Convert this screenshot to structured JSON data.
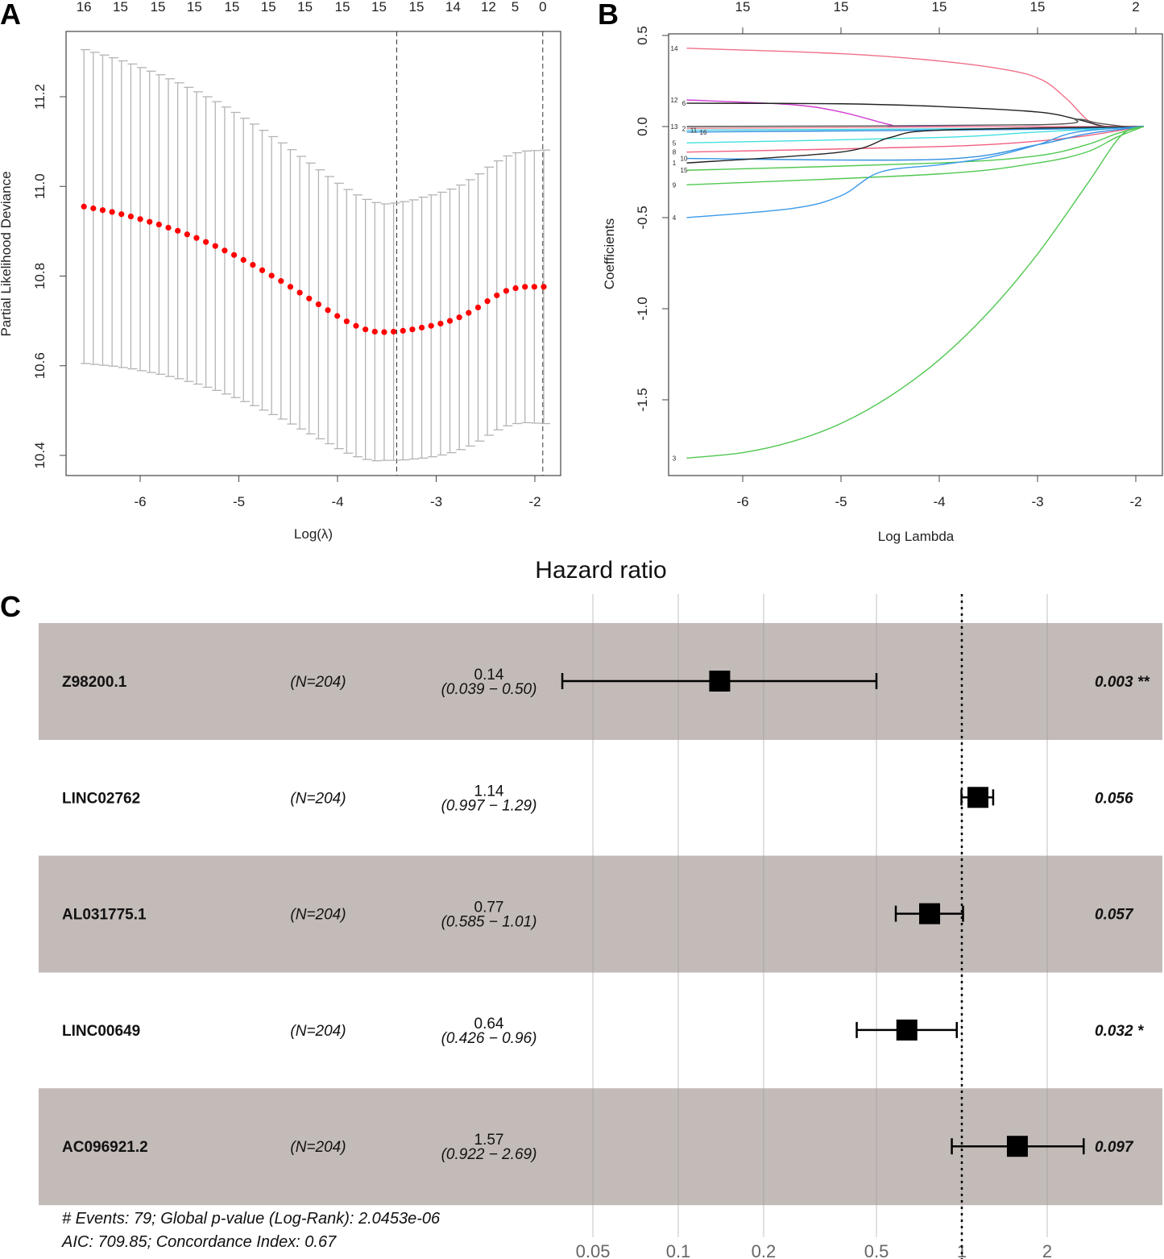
{
  "chart_data": [
    {
      "panel": "A",
      "type": "scatter",
      "xlabel": "Log(λ)",
      "ylabel": "Partial Likelihood Deviance",
      "xticks": [
        -6,
        -5,
        -4,
        -3,
        -2
      ],
      "yticks": [
        10.4,
        10.6,
        10.8,
        11.0,
        11.2
      ],
      "ytick_labels": [
        "10.4",
        "10.6",
        "10.8",
        "11.0",
        "11.2"
      ],
      "xlim": [
        -6.75,
        -1.75
      ],
      "ylim": [
        10.36,
        11.34
      ],
      "top_axis": {
        "log_lambda": [
          -6.57,
          -6.2,
          -5.82,
          -5.45,
          -5.07,
          -4.7,
          -4.33,
          -3.95,
          -3.58,
          -3.2,
          -2.83,
          -2.47,
          -2.2,
          -1.92
        ],
        "labels": [
          "16",
          "15",
          "15",
          "15",
          "15",
          "15",
          "15",
          "15",
          "15",
          "15",
          "14",
          "12",
          "5",
          "0"
        ]
      },
      "vlines": [
        -3.4,
        -1.92
      ],
      "log_lambda_start": -6.57,
      "log_lambda_step": 0.0951,
      "mean": [
        10.955,
        10.951,
        10.947,
        10.943,
        10.938,
        10.933,
        10.927,
        10.921,
        10.915,
        10.908,
        10.901,
        10.893,
        10.885,
        10.876,
        10.867,
        10.857,
        10.847,
        10.836,
        10.825,
        10.813,
        10.801,
        10.789,
        10.776,
        10.763,
        10.75,
        10.737,
        10.724,
        10.711,
        10.699,
        10.689,
        10.681,
        10.676,
        10.675,
        10.676,
        10.678,
        10.681,
        10.685,
        10.689,
        10.694,
        10.7,
        10.708,
        10.718,
        10.73,
        10.744,
        10.757,
        10.767,
        10.773,
        10.776,
        10.776,
        10.776
      ],
      "se": [
        0.35,
        0.348,
        0.346,
        0.344,
        0.342,
        0.34,
        0.338,
        0.336,
        0.334,
        0.332,
        0.33,
        0.328,
        0.326,
        0.324,
        0.322,
        0.32,
        0.318,
        0.316,
        0.314,
        0.312,
        0.31,
        0.308,
        0.306,
        0.304,
        0.302,
        0.3,
        0.298,
        0.296,
        0.294,
        0.292,
        0.29,
        0.288,
        0.286,
        0.287,
        0.288,
        0.289,
        0.291,
        0.292,
        0.293,
        0.294,
        0.295,
        0.297,
        0.298,
        0.299,
        0.3,
        0.301,
        0.302,
        0.303,
        0.304,
        0.305
      ],
      "point_color": "#ff0000",
      "bar_color": "#b4b4b4"
    },
    {
      "panel": "B",
      "type": "line",
      "xlabel": "Log Lambda",
      "ylabel": "Coefficients",
      "xticks": [
        -6,
        -5,
        -4,
        -3,
        -2
      ],
      "yticks": [
        0.5,
        0.0,
        -0.5,
        -1.0,
        -1.5
      ],
      "ytick_labels": [
        "0.5",
        "0.0",
        "-0.5",
        "-1.0",
        "-1.5"
      ],
      "top_axis": {
        "log_lambda": [
          -6,
          -5,
          -4,
          -3,
          -2
        ],
        "labels": [
          "15",
          "15",
          "15",
          "15",
          "2"
        ]
      },
      "series": [
        {
          "name": "14",
          "color": "#f07088",
          "points": [
            [
              -6.57,
              0.43
            ],
            [
              -5,
              0.4
            ],
            [
              -4,
              0.36
            ],
            [
              -3.3,
              0.31
            ],
            [
              -2.95,
              0.255
            ],
            [
              -2.7,
              0.15
            ],
            [
              -2.45,
              0.02
            ],
            [
              -2.2,
              0
            ],
            [
              -1.92,
              0
            ]
          ]
        },
        {
          "name": "12",
          "color": "#d23fd2",
          "points": [
            [
              -6.57,
              0.146
            ],
            [
              -5.5,
              0.12
            ],
            [
              -5,
              0.08
            ],
            [
              -4.5,
              0.01
            ],
            [
              -4.3,
              0
            ],
            [
              -1.92,
              0
            ]
          ]
        },
        {
          "name": "6",
          "color": "#222222",
          "points": [
            [
              -6.57,
              0.128
            ],
            [
              -5,
              0.125
            ],
            [
              -4,
              0.11
            ],
            [
              -3,
              0.08
            ],
            [
              -2.6,
              0.04
            ],
            [
              -2.3,
              0
            ],
            [
              -1.92,
              0
            ]
          ]
        },
        {
          "name": "13",
          "color": "#555555",
          "points": [
            [
              -6.57,
              0
            ],
            [
              -3,
              0.01
            ],
            [
              -2.6,
              0.04
            ],
            [
              -2.4,
              0.02
            ],
            [
              -2.1,
              0
            ],
            [
              -1.92,
              0
            ]
          ]
        },
        {
          "name": "2",
          "color": "#f08898",
          "points": [
            [
              -6.57,
              -0.01
            ],
            [
              -3,
              0
            ],
            [
              -1.92,
              0
            ]
          ]
        },
        {
          "name": "11",
          "color": "#40d0e0",
          "points": [
            [
              -6.57,
              -0.02
            ],
            [
              -3,
              -0.01
            ],
            [
              -1.92,
              0
            ]
          ]
        },
        {
          "name": "16",
          "color": "#3090e0",
          "points": [
            [
              -6.57,
              -0.03
            ],
            [
              -3,
              -0.015
            ],
            [
              -1.92,
              0
            ]
          ]
        },
        {
          "name": "5",
          "color": "#40e0e0",
          "points": [
            [
              -6.57,
              -0.09
            ],
            [
              -4,
              -0.06
            ],
            [
              -3,
              -0.03
            ],
            [
              -1.92,
              0
            ]
          ]
        },
        {
          "name": "8",
          "color": "#f06080",
          "points": [
            [
              -6.57,
              -0.14
            ],
            [
              -4,
              -0.11
            ],
            [
              -3,
              -0.08
            ],
            [
              -2.5,
              -0.05
            ],
            [
              -1.92,
              0
            ]
          ]
        },
        {
          "name": "10",
          "color": "#3090e0",
          "points": [
            [
              -6.57,
              -0.175
            ],
            [
              -4,
              -0.18
            ],
            [
              -3,
              -0.1
            ],
            [
              -2.5,
              -0.04
            ],
            [
              -1.92,
              0
            ]
          ]
        },
        {
          "name": "1",
          "color": "#222222",
          "points": [
            [
              -6.57,
              -0.2
            ],
            [
              -5,
              -0.14
            ],
            [
              -4.5,
              -0.06
            ],
            [
              -4,
              -0.02
            ],
            [
              -1.92,
              0
            ]
          ]
        },
        {
          "name": "15",
          "color": "#50c850",
          "points": [
            [
              -6.57,
              -0.24
            ],
            [
              -4,
              -0.2
            ],
            [
              -3,
              -0.16
            ],
            [
              -2.5,
              -0.1
            ],
            [
              -2.2,
              -0.04
            ],
            [
              -1.92,
              0
            ]
          ]
        },
        {
          "name": "9",
          "color": "#50c850",
          "points": [
            [
              -6.57,
              -0.32
            ],
            [
              -4,
              -0.26
            ],
            [
              -3,
              -0.2
            ],
            [
              -2.5,
              -0.14
            ],
            [
              -2.2,
              -0.06
            ],
            [
              -1.92,
              0
            ]
          ]
        },
        {
          "name": "4",
          "color": "#3a9ae8",
          "points": [
            [
              -6.57,
              -0.5
            ],
            [
              -5.5,
              -0.45
            ],
            [
              -5,
              -0.38
            ],
            [
              -4.6,
              -0.25
            ],
            [
              -4,
              -0.21
            ],
            [
              -3.5,
              -0.17
            ],
            [
              -3,
              -0.1
            ],
            [
              -2.6,
              -0.03
            ],
            [
              -1.92,
              0
            ]
          ]
        },
        {
          "name": "3",
          "color": "#50c850",
          "points": [
            [
              -6.57,
              -1.82
            ],
            [
              -6,
              -1.79
            ],
            [
              -5.5,
              -1.73
            ],
            [
              -5,
              -1.63
            ],
            [
              -4.5,
              -1.48
            ],
            [
              -4,
              -1.28
            ],
            [
              -3.5,
              -1.02
            ],
            [
              -3,
              -0.7
            ],
            [
              -2.5,
              -0.32
            ],
            [
              -2.15,
              -0.05
            ],
            [
              -1.92,
              0
            ]
          ]
        }
      ]
    },
    {
      "panel": "C",
      "type": "forest",
      "title": "Hazard ratio",
      "xscale": "log",
      "xticks": [
        0.05,
        0.1,
        0.2,
        0.5,
        1,
        2
      ],
      "xtick_labels": [
        "0.05",
        "0.1",
        "0.2",
        "0.5",
        "1",
        "2"
      ],
      "reference": 1,
      "band_color": "#c3bbb8",
      "rows": [
        {
          "name": "Z98200.1",
          "n": "(N=204)",
          "hr": 0.14,
          "hr_label": "0.14",
          "lower": 0.039,
          "upper": 0.5,
          "ci_label": "(0.039 − 0.50)",
          "p": "0.003 **"
        },
        {
          "name": "LINC02762",
          "n": "(N=204)",
          "hr": 1.14,
          "hr_label": "1.14",
          "lower": 0.997,
          "upper": 1.29,
          "ci_label": "(0.997 − 1.29)",
          "p": "0.056"
        },
        {
          "name": "AL031775.1",
          "n": "(N=204)",
          "hr": 0.77,
          "hr_label": "0.77",
          "lower": 0.585,
          "upper": 1.01,
          "ci_label": "(0.585 − 1.01)",
          "p": "0.057"
        },
        {
          "name": "LINC00649",
          "n": "(N=204)",
          "hr": 0.64,
          "hr_label": "0.64",
          "lower": 0.426,
          "upper": 0.96,
          "ci_label": "(0.426 − 0.96)",
          "p": "0.032 *"
        },
        {
          "name": "AC096921.2",
          "n": "(N=204)",
          "hr": 1.57,
          "hr_label": "1.57",
          "lower": 0.922,
          "upper": 2.69,
          "ci_label": "(0.922 − 2.69)",
          "p": "0.097"
        }
      ],
      "footer": [
        "# Events: 79; Global p-value (Log-Rank): 2.0453e-06",
        "AIC: 709.85; Concordance Index: 0.67"
      ]
    }
  ],
  "panels": {
    "a": "A",
    "b": "B",
    "c": "C"
  }
}
